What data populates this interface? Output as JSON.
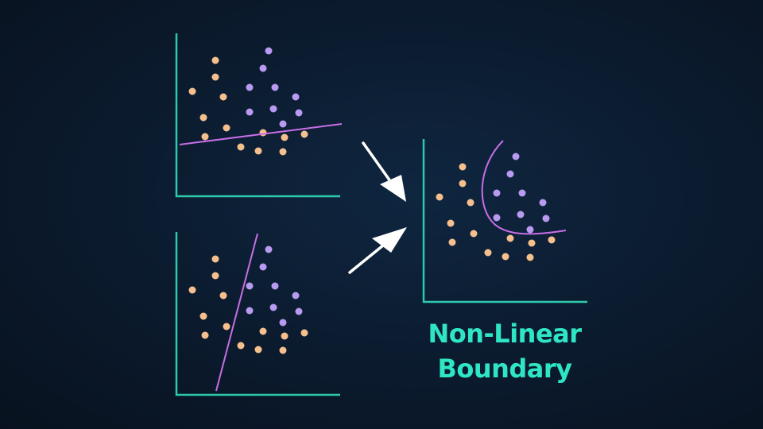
{
  "caption": {
    "line1": "Non-Linear",
    "line2": "Boundary"
  },
  "colors": {
    "axis": "#2ec9ad",
    "class_a": "#f6c08e",
    "class_b": "#b89af0",
    "boundary": "#c86ee6",
    "arrow": "#ffffff",
    "caption": "#2ee6c4"
  },
  "panels": [
    {
      "id": "top-left",
      "boundary": "linear-nearly-horizontal"
    },
    {
      "id": "bottom-left",
      "boundary": "linear-steep"
    },
    {
      "id": "right",
      "boundary": "curved"
    }
  ]
}
